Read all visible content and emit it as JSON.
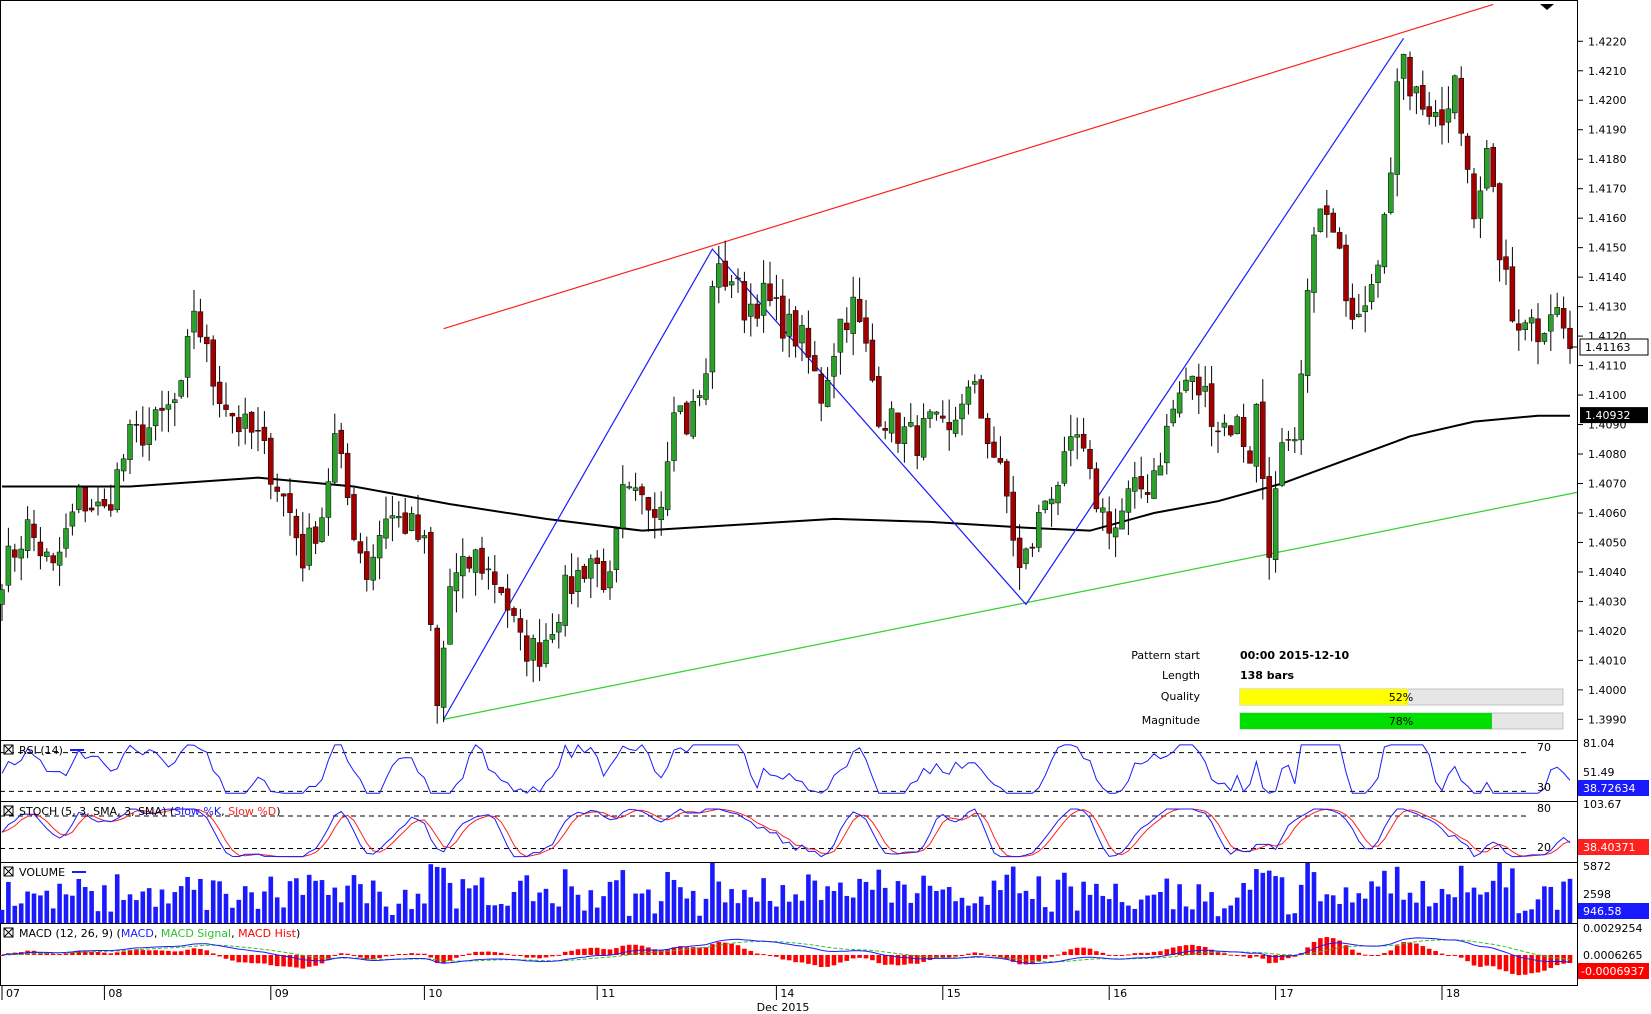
{
  "colors": {
    "bull": "#2ca02c",
    "bear": "#a00000",
    "channel_upper": "#ff2020",
    "channel_lower": "#30d030",
    "pattern": "#1a1aff",
    "ma": "#000000",
    "rsi": "#1a1aff",
    "stoch_k": "#1a1aff",
    "stoch_d": "#ff2020",
    "volume": "#1a1aff",
    "macd": "#1a1aff",
    "macd_signal": "#30c030",
    "macd_hist": "#ff0000",
    "quality_fill": "#ffff00",
    "magnitude_fill": "#00e000"
  },
  "chart_data": {
    "type": "candlestick",
    "price_axis": {
      "ylim": [
        1.3983,
        1.4234
      ],
      "ticks": [
        "1.4220",
        "1.4210",
        "1.4200",
        "1.4190",
        "1.4180",
        "1.4170",
        "1.4160",
        "1.4150",
        "1.4140",
        "1.4130",
        "1.4120",
        "1.4110",
        "1.4100",
        "1.4090",
        "1.4080",
        "1.4070",
        "1.4060",
        "1.4050",
        "1.4040",
        "1.4030",
        "1.4020",
        "1.4010",
        "1.4000",
        "1.3990"
      ],
      "current_price": "1.41163",
      "ma_price": "1.40932"
    },
    "x_axis": {
      "labels": [
        "07",
        "08",
        "09",
        "10",
        "11",
        "14",
        "15",
        "16",
        "17",
        "18"
      ],
      "label_bar_index": [
        0,
        16,
        42,
        66,
        93,
        121,
        147,
        173,
        199,
        225
      ],
      "month_label": "Dec 2015",
      "total_bars": 246
    },
    "anchors": [
      {
        "i": 0,
        "p": 1.404
      },
      {
        "i": 4,
        "p": 1.4055
      },
      {
        "i": 8,
        "p": 1.404
      },
      {
        "i": 12,
        "p": 1.4065
      },
      {
        "i": 16,
        "p": 1.406
      },
      {
        "i": 20,
        "p": 1.4085
      },
      {
        "i": 24,
        "p": 1.409
      },
      {
        "i": 28,
        "p": 1.41
      },
      {
        "i": 30,
        "p": 1.413
      },
      {
        "i": 33,
        "p": 1.4105
      },
      {
        "i": 37,
        "p": 1.409
      },
      {
        "i": 40,
        "p": 1.4085
      },
      {
        "i": 42,
        "p": 1.4075
      },
      {
        "i": 45,
        "p": 1.406
      },
      {
        "i": 47,
        "p": 1.4045
      },
      {
        "i": 50,
        "p": 1.406
      },
      {
        "i": 52,
        "p": 1.4085
      },
      {
        "i": 55,
        "p": 1.4055
      },
      {
        "i": 57,
        "p": 1.404
      },
      {
        "i": 60,
        "p": 1.406
      },
      {
        "i": 64,
        "p": 1.4055
      },
      {
        "i": 66,
        "p": 1.4048
      },
      {
        "i": 68,
        "p": 1.3993
      },
      {
        "i": 70,
        "p": 1.4035
      },
      {
        "i": 74,
        "p": 1.4045
      },
      {
        "i": 78,
        "p": 1.4035
      },
      {
        "i": 81,
        "p": 1.4015
      },
      {
        "i": 84,
        "p": 1.4013
      },
      {
        "i": 88,
        "p": 1.4033
      },
      {
        "i": 92,
        "p": 1.4045
      },
      {
        "i": 95,
        "p": 1.4035
      },
      {
        "i": 97,
        "p": 1.4065
      },
      {
        "i": 100,
        "p": 1.4063
      },
      {
        "i": 103,
        "p": 1.4065
      },
      {
        "i": 105,
        "p": 1.41
      },
      {
        "i": 107,
        "p": 1.409
      },
      {
        "i": 110,
        "p": 1.4105
      },
      {
        "i": 111,
        "p": 1.414
      },
      {
        "i": 114,
        "p": 1.414
      },
      {
        "i": 116,
        "p": 1.413
      },
      {
        "i": 119,
        "p": 1.4133
      },
      {
        "i": 122,
        "p": 1.4125
      },
      {
        "i": 125,
        "p": 1.4118
      },
      {
        "i": 128,
        "p": 1.41
      },
      {
        "i": 131,
        "p": 1.4125
      },
      {
        "i": 133,
        "p": 1.413
      },
      {
        "i": 135,
        "p": 1.4115
      },
      {
        "i": 137,
        "p": 1.4095
      },
      {
        "i": 140,
        "p": 1.4088
      },
      {
        "i": 143,
        "p": 1.4085
      },
      {
        "i": 145,
        "p": 1.409
      },
      {
        "i": 148,
        "p": 1.4085
      },
      {
        "i": 150,
        "p": 1.41
      },
      {
        "i": 152,
        "p": 1.41
      },
      {
        "i": 155,
        "p": 1.408
      },
      {
        "i": 157,
        "p": 1.4065
      },
      {
        "i": 159,
        "p": 1.404
      },
      {
        "i": 161,
        "p": 1.405
      },
      {
        "i": 163,
        "p": 1.4065
      },
      {
        "i": 166,
        "p": 1.4075
      },
      {
        "i": 168,
        "p": 1.4085
      },
      {
        "i": 170,
        "p": 1.407
      },
      {
        "i": 172,
        "p": 1.406
      },
      {
        "i": 174,
        "p": 1.4055
      },
      {
        "i": 176,
        "p": 1.4065
      },
      {
        "i": 179,
        "p": 1.407
      },
      {
        "i": 181,
        "p": 1.408
      },
      {
        "i": 183,
        "p": 1.4095
      },
      {
        "i": 185,
        "p": 1.4105
      },
      {
        "i": 188,
        "p": 1.41
      },
      {
        "i": 190,
        "p": 1.409
      },
      {
        "i": 193,
        "p": 1.409
      },
      {
        "i": 195,
        "p": 1.408
      },
      {
        "i": 196,
        "p": 1.4095
      },
      {
        "i": 198,
        "p": 1.405
      },
      {
        "i": 200,
        "p": 1.408
      },
      {
        "i": 202,
        "p": 1.408
      },
      {
        "i": 204,
        "p": 1.413
      },
      {
        "i": 205,
        "p": 1.416
      },
      {
        "i": 207,
        "p": 1.416
      },
      {
        "i": 209,
        "p": 1.4145
      },
      {
        "i": 211,
        "p": 1.413
      },
      {
        "i": 213,
        "p": 1.4135
      },
      {
        "i": 215,
        "p": 1.415
      },
      {
        "i": 217,
        "p": 1.417
      },
      {
        "i": 218,
        "p": 1.421
      },
      {
        "i": 219,
        "p": 1.422
      },
      {
        "i": 220,
        "p": 1.4205
      },
      {
        "i": 222,
        "p": 1.42
      },
      {
        "i": 224,
        "p": 1.419
      },
      {
        "i": 226,
        "p": 1.4195
      },
      {
        "i": 227,
        "p": 1.4205
      },
      {
        "i": 228,
        "p": 1.419
      },
      {
        "i": 230,
        "p": 1.4165
      },
      {
        "i": 232,
        "p": 1.418
      },
      {
        "i": 234,
        "p": 1.415
      },
      {
        "i": 236,
        "p": 1.4125
      },
      {
        "i": 238,
        "p": 1.4128
      },
      {
        "i": 240,
        "p": 1.4122
      },
      {
        "i": 242,
        "p": 1.413
      },
      {
        "i": 243,
        "p": 1.4128
      },
      {
        "i": 245,
        "p": 1.4116
      }
    ],
    "moving_average": [
      {
        "i": 0,
        "p": 1.4069
      },
      {
        "i": 20,
        "p": 1.4069
      },
      {
        "i": 40,
        "p": 1.4072
      },
      {
        "i": 55,
        "p": 1.4069
      },
      {
        "i": 70,
        "p": 1.4063
      },
      {
        "i": 85,
        "p": 1.4058
      },
      {
        "i": 100,
        "p": 1.4054
      },
      {
        "i": 115,
        "p": 1.4056
      },
      {
        "i": 130,
        "p": 1.4058
      },
      {
        "i": 145,
        "p": 1.4057
      },
      {
        "i": 160,
        "p": 1.4055
      },
      {
        "i": 170,
        "p": 1.4054
      },
      {
        "i": 180,
        "p": 1.406
      },
      {
        "i": 190,
        "p": 1.4064
      },
      {
        "i": 200,
        "p": 1.407
      },
      {
        "i": 210,
        "p": 1.4078
      },
      {
        "i": 220,
        "p": 1.4086
      },
      {
        "i": 230,
        "p": 1.4091
      },
      {
        "i": 240,
        "p": 1.4093
      },
      {
        "i": 245,
        "p": 1.4093
      }
    ],
    "channel_upper": [
      {
        "i": 69,
        "p": 1.41225
      },
      {
        "i": 233,
        "p": 1.42325
      }
    ],
    "channel_lower": [
      {
        "i": 69,
        "p": 1.399
      },
      {
        "i": 249,
        "p": 1.4067
      }
    ],
    "pattern_zigzag": [
      {
        "i": 69,
        "p": 1.399
      },
      {
        "i": 111,
        "p": 1.41495
      },
      {
        "i": 160,
        "p": 1.4029
      },
      {
        "i": 219,
        "p": 1.4221
      }
    ],
    "pattern_info": {
      "pattern_start_label": "Pattern start",
      "pattern_start_value": "00:00 2015-12-10",
      "length_label": "Length",
      "length_value": "138 bars",
      "quality_label": "Quality",
      "quality_value": "52%",
      "quality_fraction": 0.52,
      "magnitude_label": "Magnitude",
      "magnitude_value": "78%",
      "magnitude_fraction": 0.78
    },
    "rsi": {
      "title": "RSI (14)",
      "levels": [
        "70",
        "30"
      ],
      "axis_top": "81.04",
      "axis_mid": "51.49",
      "current": "38.72634",
      "range": [
        20,
        82
      ]
    },
    "stoch": {
      "title": "STOCH (5, 3, SMA, 3, SMA)",
      "k_label": "Slow %K",
      "d_label": "Slow %D",
      "levels": [
        "80",
        "20"
      ],
      "axis_top": "103.67",
      "current": "38.40371",
      "range": [
        -5,
        106
      ]
    },
    "volume": {
      "title": "VOLUME",
      "axis_top": "5872",
      "axis_mid": "2598",
      "current": "946.58",
      "max": 6400
    },
    "macd": {
      "title": "MACD (12, 26, 9)",
      "macd_label": "MACD",
      "signal_label": "MACD Signal",
      "hist_label": "MACD Hist",
      "axis_top": "0.0029254",
      "axis_mid": "0.0006265",
      "current": "-0.0006937"
    }
  }
}
